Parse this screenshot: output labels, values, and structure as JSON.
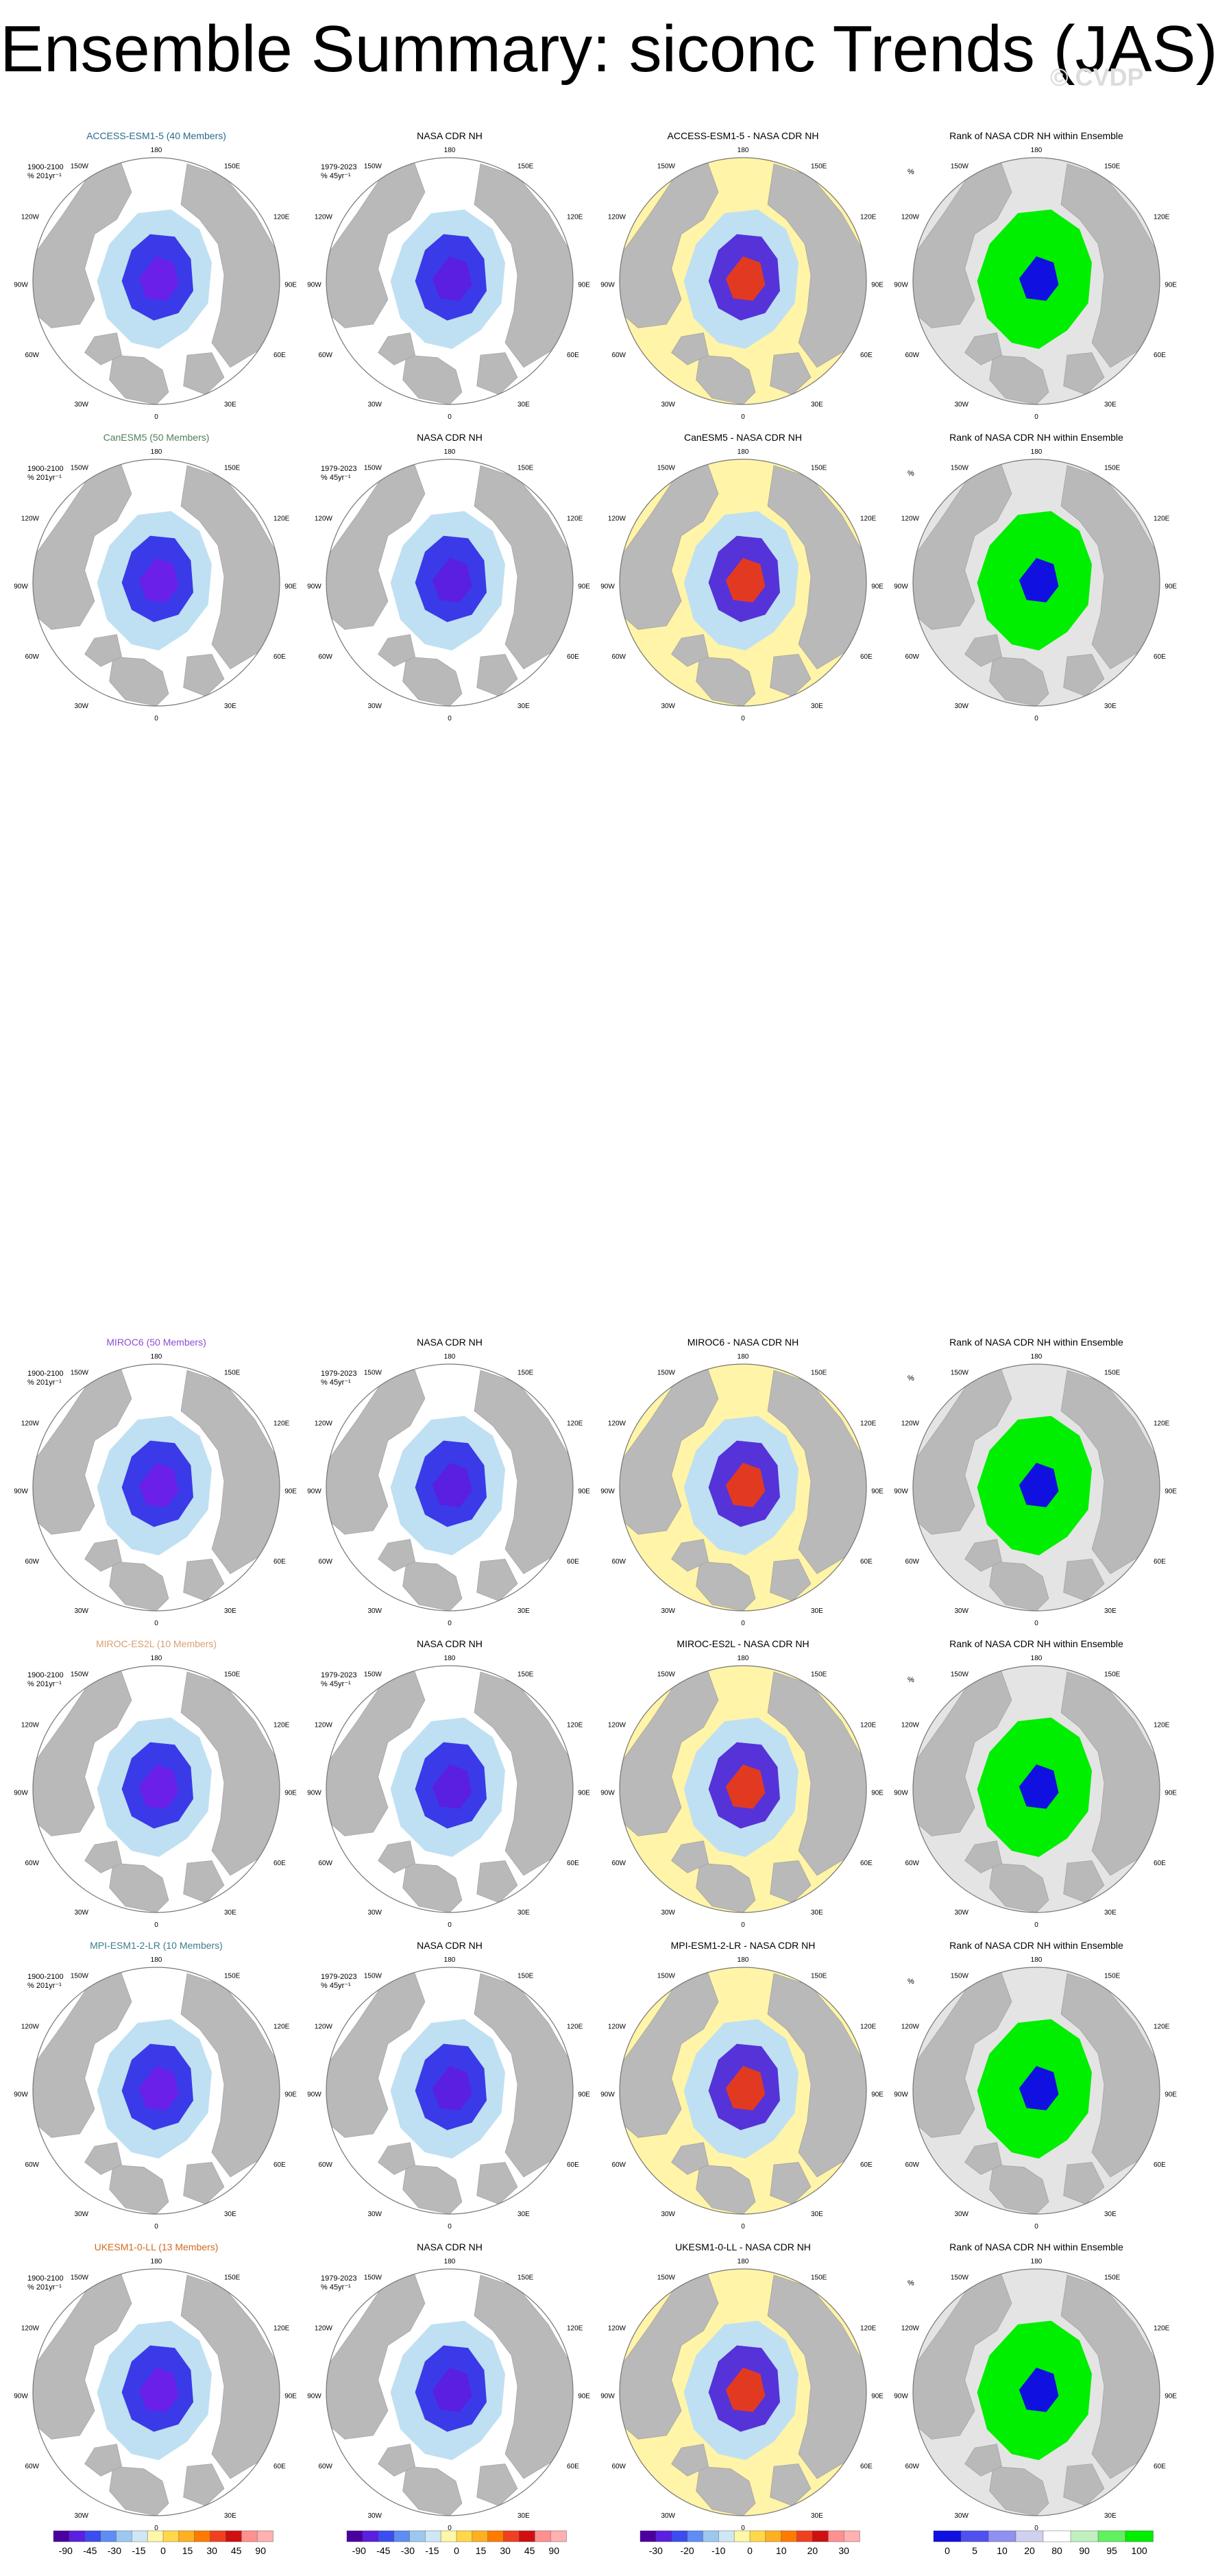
{
  "title": "Ensemble Summary: siconc Trends (JAS)",
  "watermark": "© CVDP",
  "rows": [
    {
      "model": "ACCESS-ESM1-5 (40 Members)",
      "model_color": "#2b6a8f",
      "diff_title": "ACCESS-ESM1-5 - NASA CDR NH"
    },
    {
      "model": "CanESM5 (50 Members)",
      "model_color": "#4f7f5a",
      "diff_title": "CanESM5 - NASA CDR NH"
    },
    {
      "model": "MIROC6 (50 Members)",
      "model_color": "#8a4fd0",
      "diff_title": "MIROC6 - NASA CDR NH"
    },
    {
      "model": "MIROC-ES2L (10 Members)",
      "model_color": "#d9a070",
      "diff_title": "MIROC-ES2L - NASA CDR NH"
    },
    {
      "model": "MPI-ESM1-2-LR (10 Members)",
      "model_color": "#3c7d8c",
      "diff_title": "MPI-ESM1-2-LR - NASA CDR NH"
    },
    {
      "model": "UKESM1-0-LL (13 Members)",
      "model_color": "#d2691e",
      "diff_title": "UKESM1-0-LL - NASA CDR NH"
    }
  ],
  "obs_title": "NASA CDR NH",
  "rank_title": "Rank of NASA CDR NH within Ensemble",
  "model_period": "1900-2100",
  "model_units": "% 201yr⁻¹",
  "obs_period": "1979-2023",
  "obs_units": "% 45yr⁻¹",
  "rank_units": "%",
  "longitude_labels": {
    "top": "180",
    "bottom": "0",
    "upper_left": "150W",
    "upper_right": "150E",
    "left_high": "120W",
    "right_high": "120E",
    "left": "90W",
    "right": "90E",
    "left_low": "60W",
    "right_low": "60E",
    "lower_left": "30W",
    "lower_right": "30E"
  },
  "colorbars": {
    "trend": {
      "ticks": [
        "-90",
        "-45",
        "-30",
        "-15",
        "0",
        "15",
        "30",
        "45",
        "90"
      ],
      "colors": [
        "#4b00a0",
        "#5a1fe0",
        "#3c4cf0",
        "#5f8cf5",
        "#9cc8ef",
        "#cfe6f5",
        "#fff7a8",
        "#ffd84a",
        "#ffb020",
        "#ff7a00",
        "#f04020",
        "#d01010",
        "#ff9090",
        "#ffb0b0"
      ]
    },
    "diff": {
      "ticks": [
        "-30",
        "-20",
        "-10",
        "0",
        "10",
        "20",
        "30"
      ],
      "colors": [
        "#4b00a0",
        "#5a1fe0",
        "#3c4cf0",
        "#5f8cf5",
        "#9cc8ef",
        "#cfe6f5",
        "#fff7a8",
        "#ffd84a",
        "#ffb020",
        "#ff7a00",
        "#f04020",
        "#d01010",
        "#ff9090",
        "#ffb0b0"
      ]
    },
    "rank": {
      "ticks": [
        "0",
        "5",
        "10",
        "20",
        "80",
        "90",
        "95",
        "100"
      ],
      "colors": [
        "#1010e0",
        "#5050f0",
        "#9090f0",
        "#d0d0f0",
        "#ffffff",
        "#c0f0c0",
        "#60f060",
        "#00ee00"
      ]
    }
  },
  "colors": {
    "land": "#b9b9b9",
    "ocean": "#ffffff",
    "frame": "#777777"
  }
}
